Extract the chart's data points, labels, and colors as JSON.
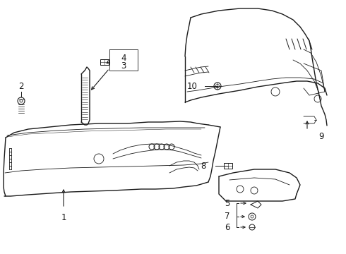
{
  "background_color": "#ffffff",
  "line_color": "#1a1a1a",
  "figsize": [
    4.9,
    3.6
  ],
  "dpi": 100,
  "label_fontsize": 8.5,
  "lw_main": 1.0,
  "lw_thin": 0.6,
  "lw_heavy": 1.4
}
